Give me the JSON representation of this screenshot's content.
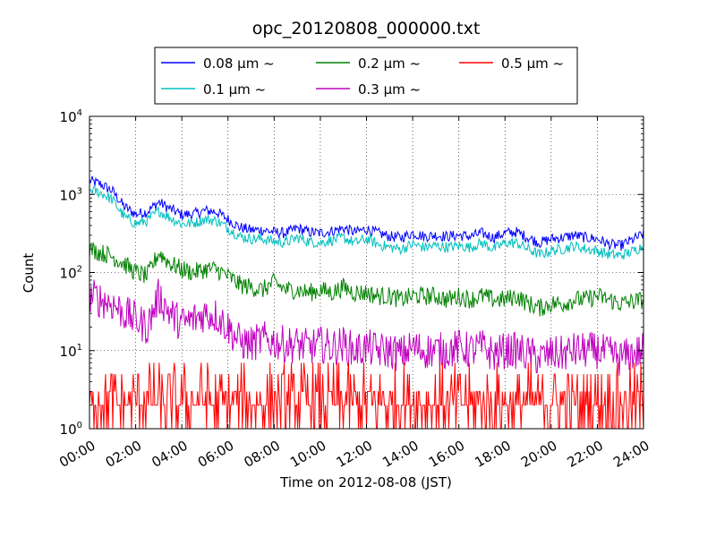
{
  "chart_data": {
    "type": "line",
    "title": "opc_20120808_000000.txt",
    "xlabel": "Time on 2012-08-08 (JST)",
    "ylabel": "Count",
    "x_range": [
      "00:00",
      "24:00"
    ],
    "x_ticks": [
      "00:00",
      "02:00",
      "04:00",
      "06:00",
      "08:00",
      "10:00",
      "12:00",
      "14:00",
      "16:00",
      "18:00",
      "20:00",
      "22:00",
      "24:00"
    ],
    "y_scale": "log",
    "ylim": [
      1,
      10000
    ],
    "y_ticks": [
      {
        "base": "10",
        "exp": "0"
      },
      {
        "base": "10",
        "exp": "1"
      },
      {
        "base": "10",
        "exp": "2"
      },
      {
        "base": "10",
        "exp": "3"
      },
      {
        "base": "10",
        "exp": "4"
      }
    ],
    "grid": true,
    "legend_position": "top",
    "x_hours": [
      0,
      0.5,
      1,
      1.5,
      2,
      2.5,
      3,
      3.5,
      4,
      4.5,
      5,
      5.5,
      6,
      6.5,
      7,
      7.5,
      8,
      8.5,
      9,
      9.5,
      10,
      10.5,
      11,
      11.5,
      12,
      12.5,
      13,
      13.5,
      14,
      14.5,
      15,
      15.5,
      16,
      16.5,
      17,
      17.5,
      18,
      18.5,
      19,
      19.5,
      20,
      20.5,
      21,
      21.5,
      22,
      22.5,
      23,
      23.5,
      24
    ],
    "series": [
      {
        "name": "0.08 μm ~",
        "color": "#0000ff",
        "values": [
          1500,
          1350,
          1100,
          700,
          560,
          600,
          800,
          650,
          550,
          560,
          620,
          600,
          480,
          380,
          350,
          350,
          330,
          320,
          370,
          330,
          320,
          340,
          370,
          330,
          360,
          320,
          290,
          280,
          320,
          290,
          300,
          290,
          300,
          290,
          320,
          280,
          320,
          330,
          280,
          240,
          270,
          280,
          300,
          280,
          270,
          230,
          220,
          260,
          310
        ]
      },
      {
        "name": "0.1 μm ~",
        "color": "#00bfbf",
        "values": [
          1150,
          1050,
          850,
          520,
          420,
          460,
          620,
          500,
          420,
          430,
          480,
          460,
          370,
          290,
          270,
          270,
          250,
          240,
          280,
          250,
          240,
          260,
          280,
          240,
          270,
          230,
          210,
          200,
          230,
          210,
          220,
          210,
          220,
          210,
          240,
          200,
          240,
          240,
          200,
          170,
          190,
          200,
          220,
          200,
          190,
          170,
          165,
          185,
          220
        ]
      },
      {
        "name": "0.2 μm ~",
        "color": "#008000",
        "values": [
          200,
          180,
          160,
          130,
          100,
          90,
          180,
          130,
          110,
          100,
          110,
          110,
          90,
          70,
          65,
          60,
          75,
          60,
          60,
          55,
          60,
          55,
          65,
          55,
          55,
          50,
          50,
          45,
          50,
          50,
          50,
          45,
          50,
          45,
          50,
          45,
          45,
          50,
          40,
          35,
          40,
          40,
          45,
          45,
          50,
          45,
          40,
          42,
          45
        ]
      },
      {
        "name": "0.3 μm ~",
        "color": "#bf00bf",
        "values": [
          50,
          45,
          40,
          30,
          25,
          20,
          50,
          30,
          22,
          25,
          30,
          28,
          20,
          13,
          12,
          14,
          13,
          12,
          12,
          11,
          12,
          11,
          12,
          10,
          11,
          10,
          10,
          9,
          11,
          10,
          10,
          10,
          11,
          10,
          11,
          9,
          10,
          10,
          9,
          8,
          9,
          9,
          10,
          10,
          10,
          9,
          8,
          9,
          10
        ]
      },
      {
        "name": "0.5 μm ~",
        "color": "#ff0000",
        "values": [
          3,
          3,
          2,
          2,
          2,
          2,
          3,
          2,
          2,
          2,
          2,
          2,
          2,
          2,
          2,
          2,
          2,
          2,
          2,
          2,
          2,
          2,
          2,
          2,
          2,
          2,
          2,
          2,
          2,
          2,
          2,
          2,
          2,
          2,
          2,
          2,
          2,
          2,
          2,
          2,
          2,
          2,
          2,
          2,
          2,
          2,
          2,
          2,
          2
        ]
      }
    ]
  }
}
